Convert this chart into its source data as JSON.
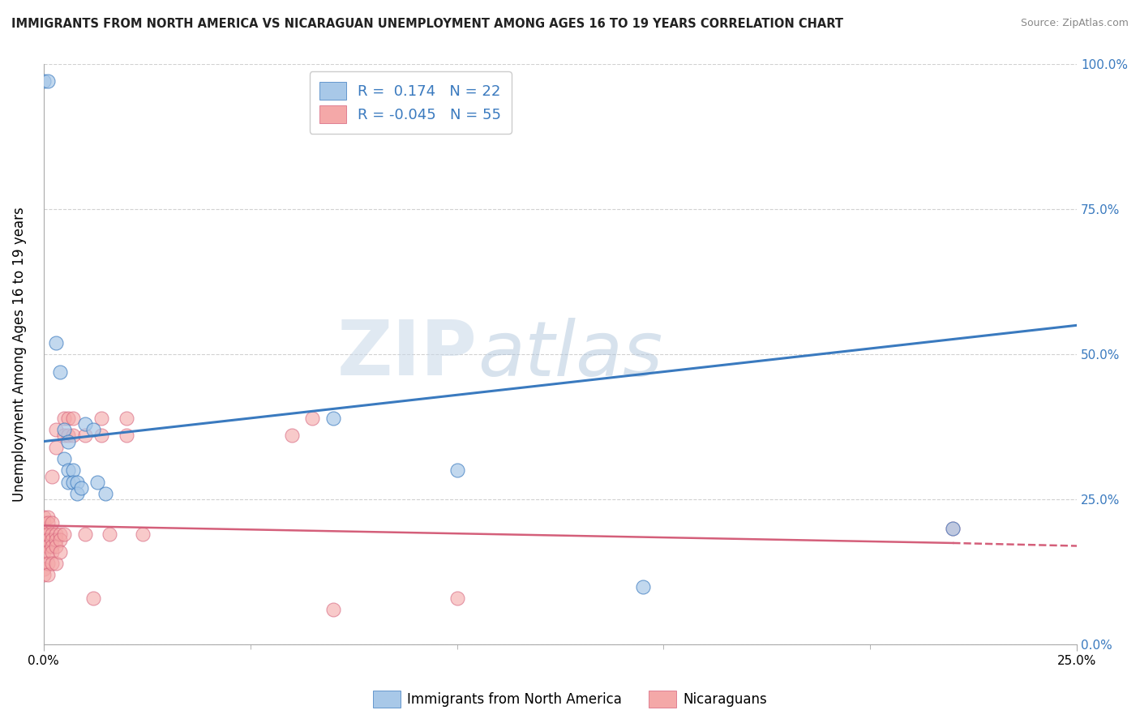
{
  "title": "IMMIGRANTS FROM NORTH AMERICA VS NICARAGUAN UNEMPLOYMENT AMONG AGES 16 TO 19 YEARS CORRELATION CHART",
  "source": "Source: ZipAtlas.com",
  "ylabel": "Unemployment Among Ages 16 to 19 years",
  "legend_label1": "Immigrants from North America",
  "legend_label2": "Nicaraguans",
  "R1": 0.174,
  "N1": 22,
  "R2": -0.045,
  "N2": 55,
  "blue_color": "#a8c8e8",
  "pink_color": "#f4a8a8",
  "blue_line_color": "#3a7abf",
  "pink_line_color": "#d45f7a",
  "blue_scatter": [
    [
      0.0,
      0.97
    ],
    [
      0.001,
      0.97
    ],
    [
      0.003,
      0.52
    ],
    [
      0.004,
      0.47
    ],
    [
      0.005,
      0.37
    ],
    [
      0.005,
      0.32
    ],
    [
      0.006,
      0.35
    ],
    [
      0.006,
      0.3
    ],
    [
      0.006,
      0.28
    ],
    [
      0.007,
      0.3
    ],
    [
      0.007,
      0.28
    ],
    [
      0.008,
      0.28
    ],
    [
      0.008,
      0.26
    ],
    [
      0.009,
      0.27
    ],
    [
      0.01,
      0.38
    ],
    [
      0.012,
      0.37
    ],
    [
      0.013,
      0.28
    ],
    [
      0.015,
      0.26
    ],
    [
      0.07,
      0.39
    ],
    [
      0.1,
      0.3
    ],
    [
      0.145,
      0.1
    ],
    [
      0.22,
      0.2
    ]
  ],
  "pink_scatter": [
    [
      0.0,
      0.22
    ],
    [
      0.0,
      0.21
    ],
    [
      0.0,
      0.2
    ],
    [
      0.0,
      0.19
    ],
    [
      0.0,
      0.18
    ],
    [
      0.0,
      0.17
    ],
    [
      0.0,
      0.16
    ],
    [
      0.0,
      0.14
    ],
    [
      0.0,
      0.13
    ],
    [
      0.0,
      0.12
    ],
    [
      0.001,
      0.22
    ],
    [
      0.001,
      0.21
    ],
    [
      0.001,
      0.19
    ],
    [
      0.001,
      0.18
    ],
    [
      0.001,
      0.17
    ],
    [
      0.001,
      0.16
    ],
    [
      0.001,
      0.14
    ],
    [
      0.001,
      0.12
    ],
    [
      0.002,
      0.21
    ],
    [
      0.002,
      0.19
    ],
    [
      0.002,
      0.18
    ],
    [
      0.002,
      0.17
    ],
    [
      0.002,
      0.16
    ],
    [
      0.002,
      0.14
    ],
    [
      0.002,
      0.29
    ],
    [
      0.003,
      0.19
    ],
    [
      0.003,
      0.18
    ],
    [
      0.003,
      0.17
    ],
    [
      0.003,
      0.14
    ],
    [
      0.003,
      0.34
    ],
    [
      0.003,
      0.37
    ],
    [
      0.004,
      0.19
    ],
    [
      0.004,
      0.18
    ],
    [
      0.004,
      0.16
    ],
    [
      0.005,
      0.19
    ],
    [
      0.005,
      0.36
    ],
    [
      0.005,
      0.39
    ],
    [
      0.006,
      0.36
    ],
    [
      0.006,
      0.39
    ],
    [
      0.007,
      0.36
    ],
    [
      0.007,
      0.39
    ],
    [
      0.01,
      0.19
    ],
    [
      0.01,
      0.36
    ],
    [
      0.012,
      0.08
    ],
    [
      0.014,
      0.36
    ],
    [
      0.014,
      0.39
    ],
    [
      0.016,
      0.19
    ],
    [
      0.02,
      0.36
    ],
    [
      0.02,
      0.39
    ],
    [
      0.024,
      0.19
    ],
    [
      0.06,
      0.36
    ],
    [
      0.065,
      0.39
    ],
    [
      0.07,
      0.06
    ],
    [
      0.1,
      0.08
    ],
    [
      0.22,
      0.2
    ]
  ],
  "xlim": [
    0.0,
    0.25
  ],
  "ylim": [
    0.0,
    1.0
  ],
  "watermark_zip": "ZIP",
  "watermark_atlas": "atlas",
  "background_color": "#ffffff",
  "grid_color": "#cccccc",
  "tick_color": "#3a7abf"
}
